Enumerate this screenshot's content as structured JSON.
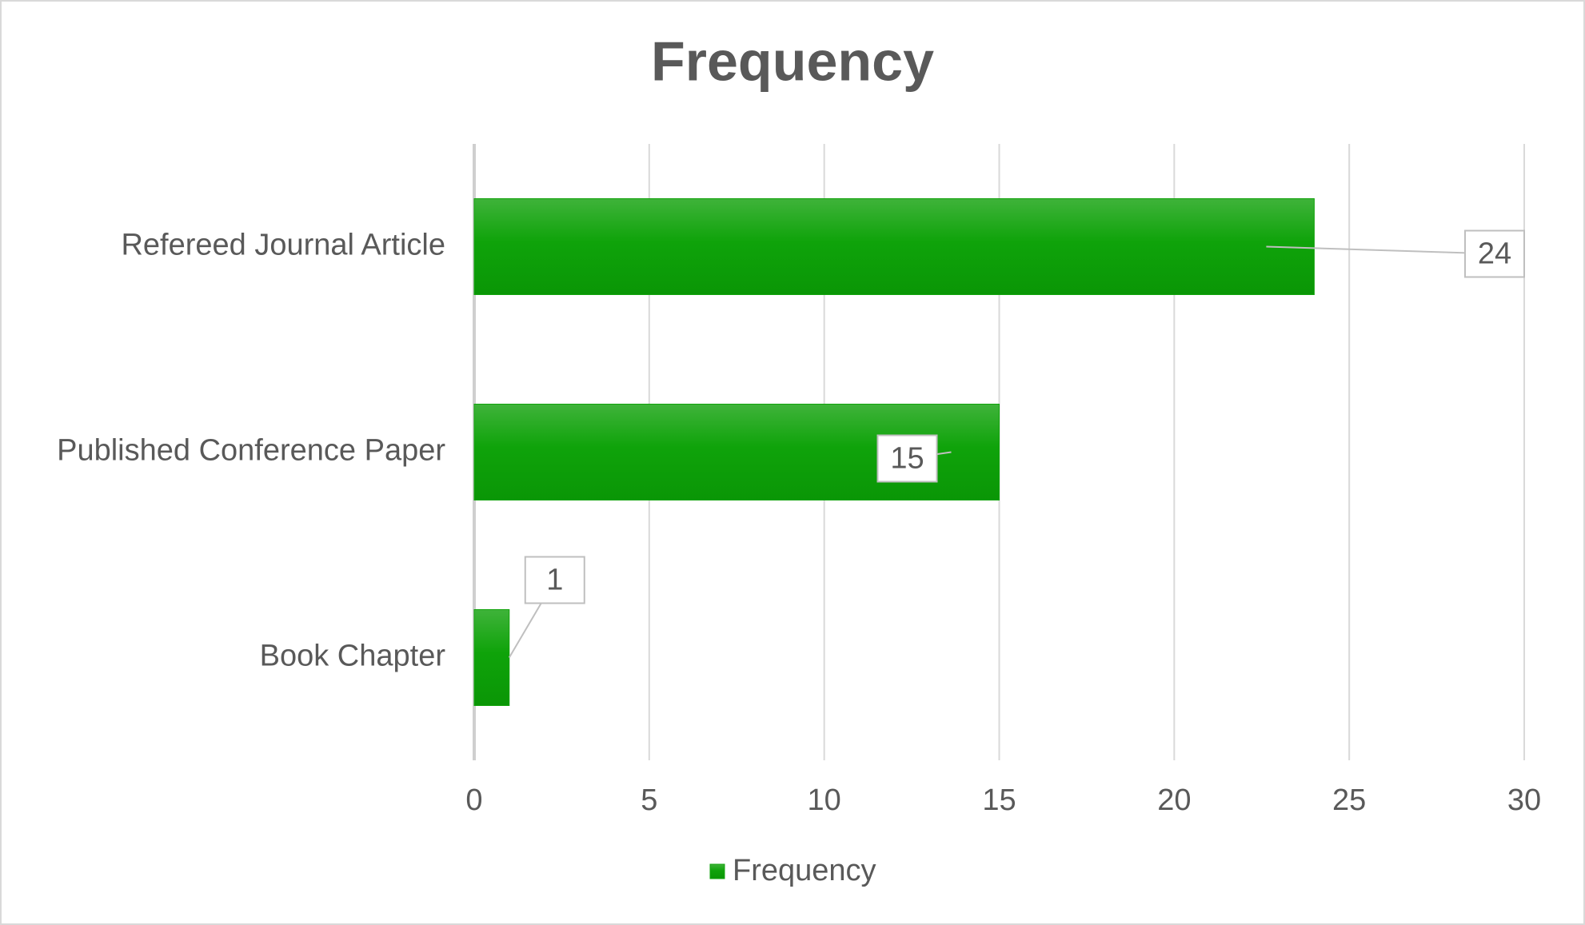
{
  "chart_data": {
    "type": "bar",
    "orientation": "horizontal",
    "title": "Frequency",
    "categories": [
      "Book Chapter",
      "Published Conference Paper",
      "Refereed Journal Article"
    ],
    "series": [
      {
        "name": "Frequency",
        "color": "#12a30c",
        "values": [
          1,
          15,
          24
        ]
      }
    ],
    "xlim": [
      0,
      30
    ],
    "xticks": [
      0,
      5,
      10,
      15,
      20,
      25,
      30
    ],
    "grid": true,
    "legend": "bottom"
  }
}
